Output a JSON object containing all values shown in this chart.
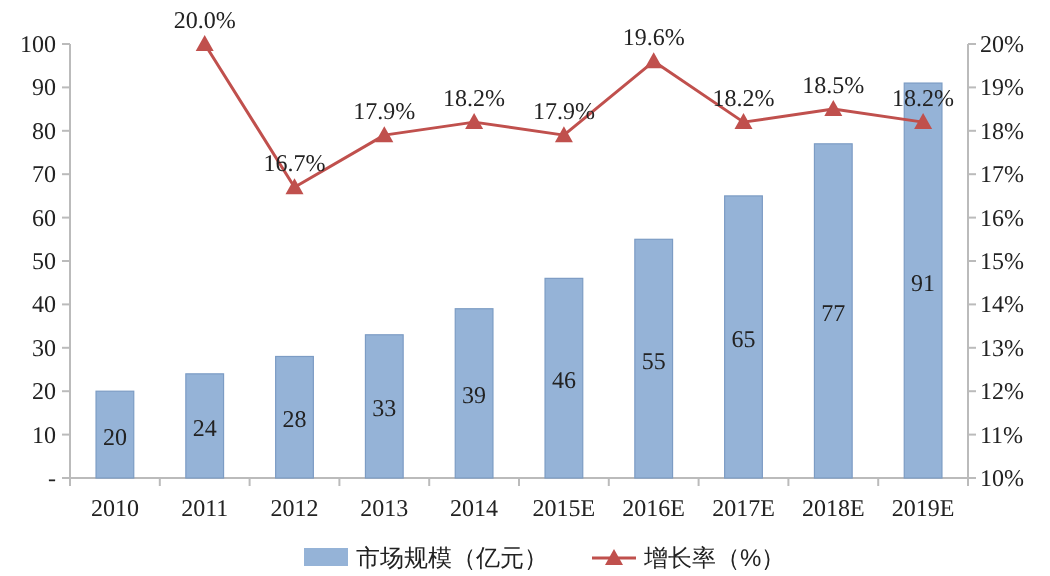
{
  "chart_data": {
    "type": "bar",
    "categories": [
      "2010",
      "2011",
      "2012",
      "2013",
      "2014",
      "2015E",
      "2016E",
      "2017E",
      "2018E",
      "2019E"
    ],
    "series": [
      {
        "name": "市场规模（亿元）",
        "color": "#95b3d7",
        "values": [
          20,
          24,
          28,
          33,
          39,
          46,
          55,
          65,
          77,
          91
        ],
        "value_labels": [
          "20",
          "24",
          "28",
          "33",
          "39",
          "46",
          "55",
          "65",
          "77",
          "91"
        ]
      },
      {
        "name": "增长率（%）",
        "type": "line",
        "axis": "y2",
        "color": "#c0504d",
        "values": [
          null,
          20.0,
          16.7,
          17.9,
          18.2,
          17.9,
          19.6,
          18.2,
          18.5,
          18.2
        ],
        "value_labels": [
          null,
          "20.0%",
          "16.7%",
          "17.9%",
          "18.2%",
          "17.9%",
          "19.6%",
          "18.2%",
          "18.5%",
          "18.2%"
        ]
      }
    ],
    "ylim": [
      0,
      100
    ],
    "yticks": [
      {
        "value": 0,
        "label": "-"
      },
      10,
      20,
      30,
      40,
      50,
      60,
      70,
      80,
      90,
      100
    ],
    "y2lim": [
      10,
      20
    ],
    "y2ticks": [
      {
        "value": 10,
        "label": "10%"
      },
      {
        "value": 11,
        "label": "11%"
      },
      {
        "value": 12,
        "label": "12%"
      },
      {
        "value": 13,
        "label": "13%"
      },
      {
        "value": 14,
        "label": "14%"
      },
      {
        "value": 15,
        "label": "15%"
      },
      {
        "value": 16,
        "label": "16%"
      },
      {
        "value": 17,
        "label": "17%"
      },
      {
        "value": 18,
        "label": "18%"
      },
      {
        "value": 19,
        "label": "19%"
      },
      {
        "value": 20,
        "label": "20%"
      }
    ],
    "legend": "bottom",
    "grid": false,
    "marker": "triangle",
    "line_style": "solid"
  }
}
